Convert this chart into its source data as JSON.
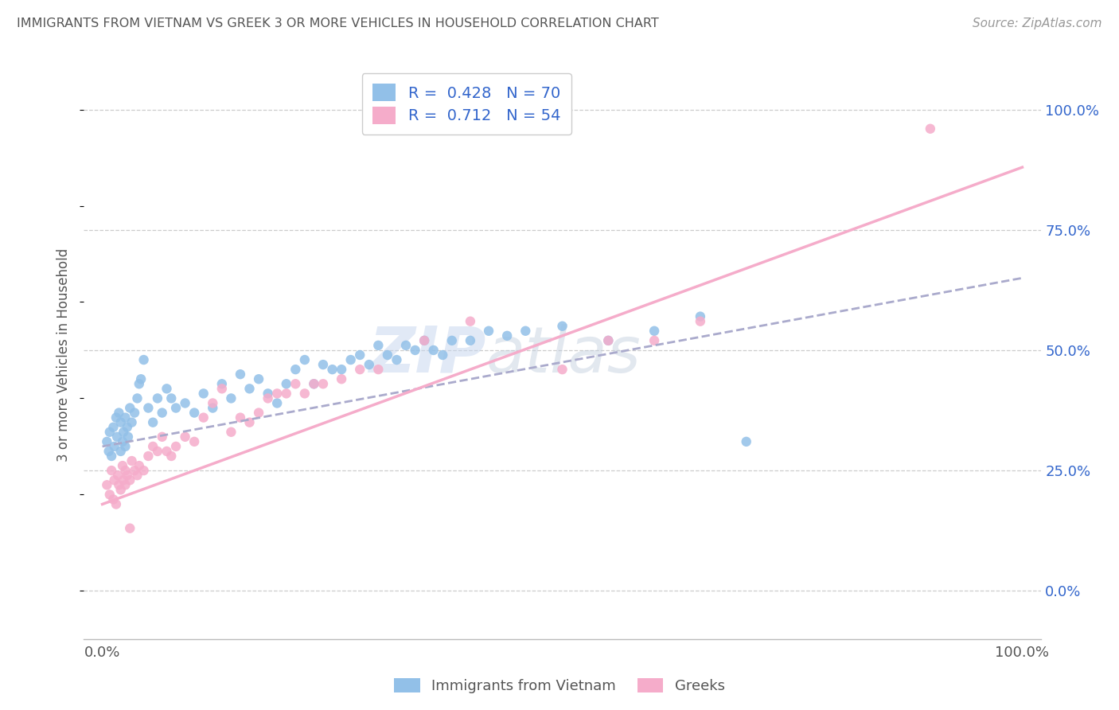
{
  "title": "IMMIGRANTS FROM VIETNAM VS GREEK 3 OR MORE VEHICLES IN HOUSEHOLD CORRELATION CHART",
  "source": "Source: ZipAtlas.com",
  "ylabel": "3 or more Vehicles in Household",
  "xlim": [
    -2,
    102
  ],
  "ylim": [
    -10,
    108
  ],
  "x_tick_vals": [
    0,
    100
  ],
  "x_tick_labels": [
    "0.0%",
    "100.0%"
  ],
  "y_tick_labels_right": [
    "0.0%",
    "25.0%",
    "50.0%",
    "75.0%",
    "100.0%"
  ],
  "y_tick_vals_right": [
    0,
    25,
    50,
    75,
    100
  ],
  "watermark_top": "ZIP",
  "watermark_bot": "atlas",
  "series1_color": "#92C0E8",
  "series2_color": "#F5ACCA",
  "series1_label": "Immigrants from Vietnam",
  "series2_label": "Greeks",
  "R1": 0.428,
  "N1": 70,
  "R2": 0.712,
  "N2": 54,
  "legend_r_color": "#3366CC",
  "grid_color": "#CCCCCC",
  "title_color": "#555555",
  "series1_x": [
    0.5,
    0.7,
    0.8,
    1.0,
    1.2,
    1.3,
    1.5,
    1.6,
    1.8,
    2.0,
    2.0,
    2.2,
    2.3,
    2.5,
    2.5,
    2.7,
    2.8,
    3.0,
    3.2,
    3.5,
    3.8,
    4.0,
    4.2,
    4.5,
    5.0,
    5.5,
    6.0,
    6.5,
    7.0,
    7.5,
    8.0,
    9.0,
    10.0,
    11.0,
    12.0,
    13.0,
    14.0,
    15.0,
    16.0,
    17.0,
    18.0,
    19.0,
    20.0,
    21.0,
    22.0,
    23.0,
    24.0,
    25.0,
    26.0,
    27.0,
    28.0,
    29.0,
    30.0,
    31.0,
    32.0,
    33.0,
    34.0,
    35.0,
    36.0,
    37.0,
    38.0,
    40.0,
    42.0,
    44.0,
    46.0,
    50.0,
    55.0,
    60.0,
    65.0,
    70.0
  ],
  "series1_y": [
    31,
    29,
    33,
    28,
    34,
    30,
    36,
    32,
    37,
    29,
    35,
    31,
    33,
    36,
    30,
    34,
    32,
    38,
    35,
    37,
    40,
    43,
    44,
    48,
    38,
    35,
    40,
    37,
    42,
    40,
    38,
    39,
    37,
    41,
    38,
    43,
    40,
    45,
    42,
    44,
    41,
    39,
    43,
    46,
    48,
    43,
    47,
    46,
    46,
    48,
    49,
    47,
    51,
    49,
    48,
    51,
    50,
    52,
    50,
    49,
    52,
    52,
    54,
    53,
    54,
    55,
    52,
    54,
    57,
    31
  ],
  "series2_x": [
    0.5,
    0.8,
    1.0,
    1.2,
    1.3,
    1.5,
    1.7,
    1.8,
    2.0,
    2.2,
    2.3,
    2.5,
    2.5,
    2.7,
    3.0,
    3.2,
    3.5,
    3.8,
    4.0,
    4.5,
    5.0,
    5.5,
    6.0,
    6.5,
    7.0,
    7.5,
    8.0,
    9.0,
    10.0,
    11.0,
    12.0,
    13.0,
    14.0,
    15.0,
    16.0,
    17.0,
    18.0,
    19.0,
    20.0,
    21.0,
    22.0,
    23.0,
    24.0,
    26.0,
    28.0,
    30.0,
    35.0,
    40.0,
    50.0,
    55.0,
    60.0,
    65.0,
    90.0,
    3.0
  ],
  "series2_y": [
    22,
    20,
    25,
    19,
    23,
    18,
    24,
    22,
    21,
    26,
    23,
    25,
    22,
    24,
    23,
    27,
    25,
    24,
    26,
    25,
    28,
    30,
    29,
    32,
    29,
    28,
    30,
    32,
    31,
    36,
    39,
    42,
    33,
    36,
    35,
    37,
    40,
    41,
    41,
    43,
    41,
    43,
    43,
    44,
    46,
    46,
    52,
    56,
    46,
    52,
    52,
    56,
    96,
    13
  ],
  "line1_intercept": 30.0,
  "line1_slope": 0.35,
  "line2_intercept": 18.0,
  "line2_slope": 0.7
}
